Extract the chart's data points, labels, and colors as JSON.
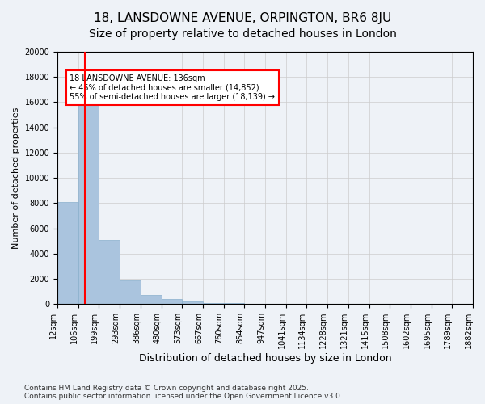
{
  "title_line1": "18, LANSDOWNE AVENUE, ORPINGTON, BR6 8JU",
  "title_line2": "Size of property relative to detached houses in London",
  "bar_values": [
    8100,
    17000,
    5100,
    1850,
    750,
    400,
    200,
    100,
    50,
    20,
    0,
    0,
    0,
    0,
    0,
    0,
    0,
    0,
    0,
    0
  ],
  "x_labels": [
    "12sqm",
    "106sqm",
    "199sqm",
    "293sqm",
    "386sqm",
    "480sqm",
    "573sqm",
    "667sqm",
    "760sqm",
    "854sqm",
    "947sqm",
    "1041sqm",
    "1134sqm",
    "1228sqm",
    "1321sqm",
    "1415sqm",
    "1508sqm",
    "1602sqm",
    "1695sqm",
    "1789sqm",
    "1882sqm"
  ],
  "bar_color": "#aac4de",
  "bar_edge_color": "#8ab0cc",
  "grid_color": "#cccccc",
  "background_color": "#eef2f7",
  "ylabel": "Number of detached properties",
  "xlabel": "Distribution of detached houses by size in London",
  "ylim": [
    0,
    20000
  ],
  "red_line_x": 1.32,
  "annotation_text": "18 LANSDOWNE AVENUE: 136sqm\n← 45% of detached houses are smaller (14,852)\n55% of semi-detached houses are larger (18,139) →",
  "annotation_box_color": "#ffffff",
  "annotation_border_color": "red",
  "footer_line1": "Contains HM Land Registry data © Crown copyright and database right 2025.",
  "footer_line2": "Contains public sector information licensed under the Open Government Licence v3.0.",
  "title_fontsize": 11,
  "subtitle_fontsize": 10,
  "tick_fontsize": 7,
  "ylabel_fontsize": 8,
  "xlabel_fontsize": 9
}
